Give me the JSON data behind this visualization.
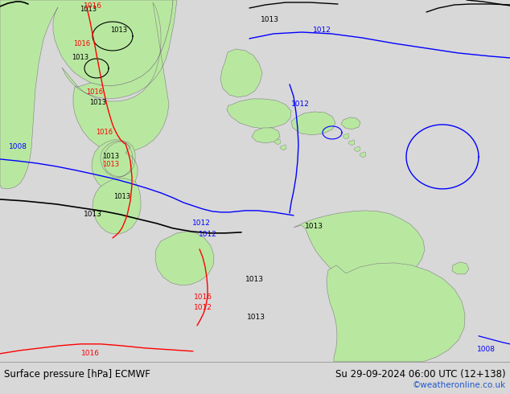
{
  "title_left": "Surface pressure [hPa] ECMWF",
  "title_right": "Su 29-09-2024 06:00 UTC (12+138)",
  "credit": "©weatheronline.co.uk",
  "ocean_color": "#d8d8d8",
  "land_color": "#b8e8a0",
  "land_edge": "#808080",
  "bar_bg": "#f0f0f0",
  "credit_color": "#2255cc",
  "figsize": [
    6.34,
    4.9
  ],
  "dpi": 100
}
